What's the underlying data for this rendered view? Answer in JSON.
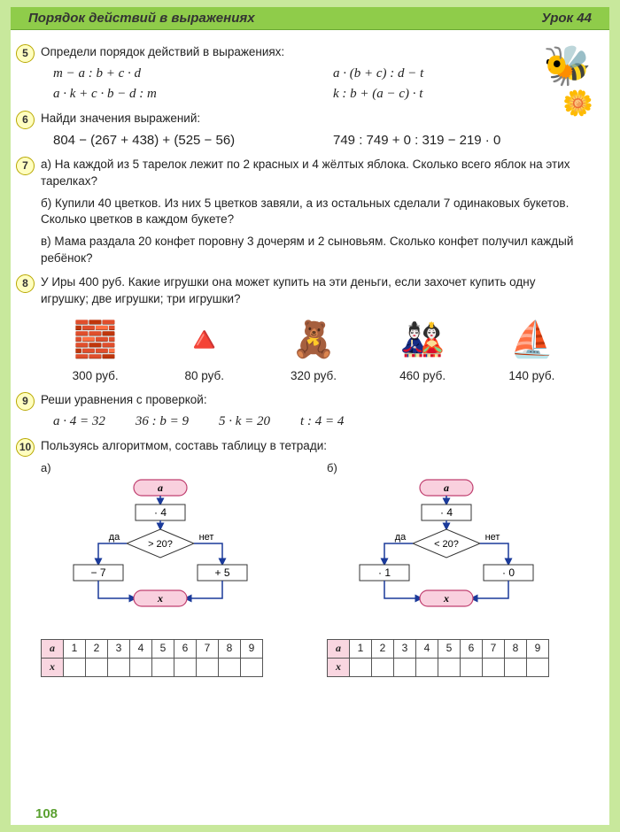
{
  "header": {
    "title": "Порядок действий в выражениях",
    "lesson": "Урок 44"
  },
  "page_number": "108",
  "task5": {
    "text": "Определи порядок действий в выражениях:",
    "exprs": [
      "m − a : b + c · d",
      "a · (b + c) : d − t",
      "a · k + c · b − d : m",
      "k : b + (a − c) · t"
    ]
  },
  "task6": {
    "text": "Найди значения выражений:",
    "exprs": [
      "804 − (267 + 438) + (525 − 56)",
      "749 : 749 + 0 : 319 − 219 · 0"
    ]
  },
  "task7": {
    "a": "а) На каждой из 5 тарелок лежит по 2 красных и 4 жёлтых яблока. Сколько всего яблок на этих тарелках?",
    "b": "б) Купили 40 цветков. Из них 5 цветков завяли, а из остальных сделали 7 одинаковых букетов. Сколько цветков в каждом букете?",
    "c": "в) Мама раздала 20 конфет поровну 3 дочерям и 2 сыновьям. Сколько конфет получил каждый ребёнок?"
  },
  "task8": {
    "text": "У Иры 400 руб. Какие игрушки она может купить на эти деньги, если захочет купить одну игрушку; две игрушки; три игрушки?",
    "toys": [
      {
        "icon": "🧱",
        "price": "300 руб."
      },
      {
        "icon": "🔺",
        "price": "80 руб."
      },
      {
        "icon": "🧸",
        "price": "320 руб."
      },
      {
        "icon": "🎎",
        "price": "460 руб."
      },
      {
        "icon": "⛵",
        "price": "140 руб."
      }
    ]
  },
  "task9": {
    "text": "Реши уравнения с проверкой:",
    "eqs": [
      "a · 4 = 32",
      "36 : b = 9",
      "5 · k = 20",
      "t : 4 = 4"
    ]
  },
  "task10": {
    "text": "Пользуясь алгоритмом, составь таблицу в тетради:",
    "a": {
      "label": "а)",
      "flow": {
        "start": "a",
        "op1": "· 4",
        "cond": "> 20?",
        "yes": "да",
        "no": "нет",
        "opL": "− 7",
        "opR": "+ 5",
        "end": "x"
      },
      "table": {
        "rowvar1": "a",
        "rowvar2": "x",
        "vals": [
          "1",
          "2",
          "3",
          "4",
          "5",
          "6",
          "7",
          "8",
          "9"
        ]
      }
    },
    "b": {
      "label": "б)",
      "flow": {
        "start": "a",
        "op1": "· 4",
        "cond": "< 20?",
        "yes": "да",
        "no": "нет",
        "opL": "· 1",
        "opR": "· 0",
        "end": "x"
      },
      "table": {
        "rowvar1": "a",
        "rowvar2": "x",
        "vals": [
          "1",
          "2",
          "3",
          "4",
          "5",
          "6",
          "7",
          "8",
          "9"
        ]
      }
    }
  },
  "colors": {
    "pink_fill": "#f9d0de",
    "pink_stroke": "#c04070",
    "box_stroke": "#333",
    "arrow": "#1a3a9a"
  }
}
